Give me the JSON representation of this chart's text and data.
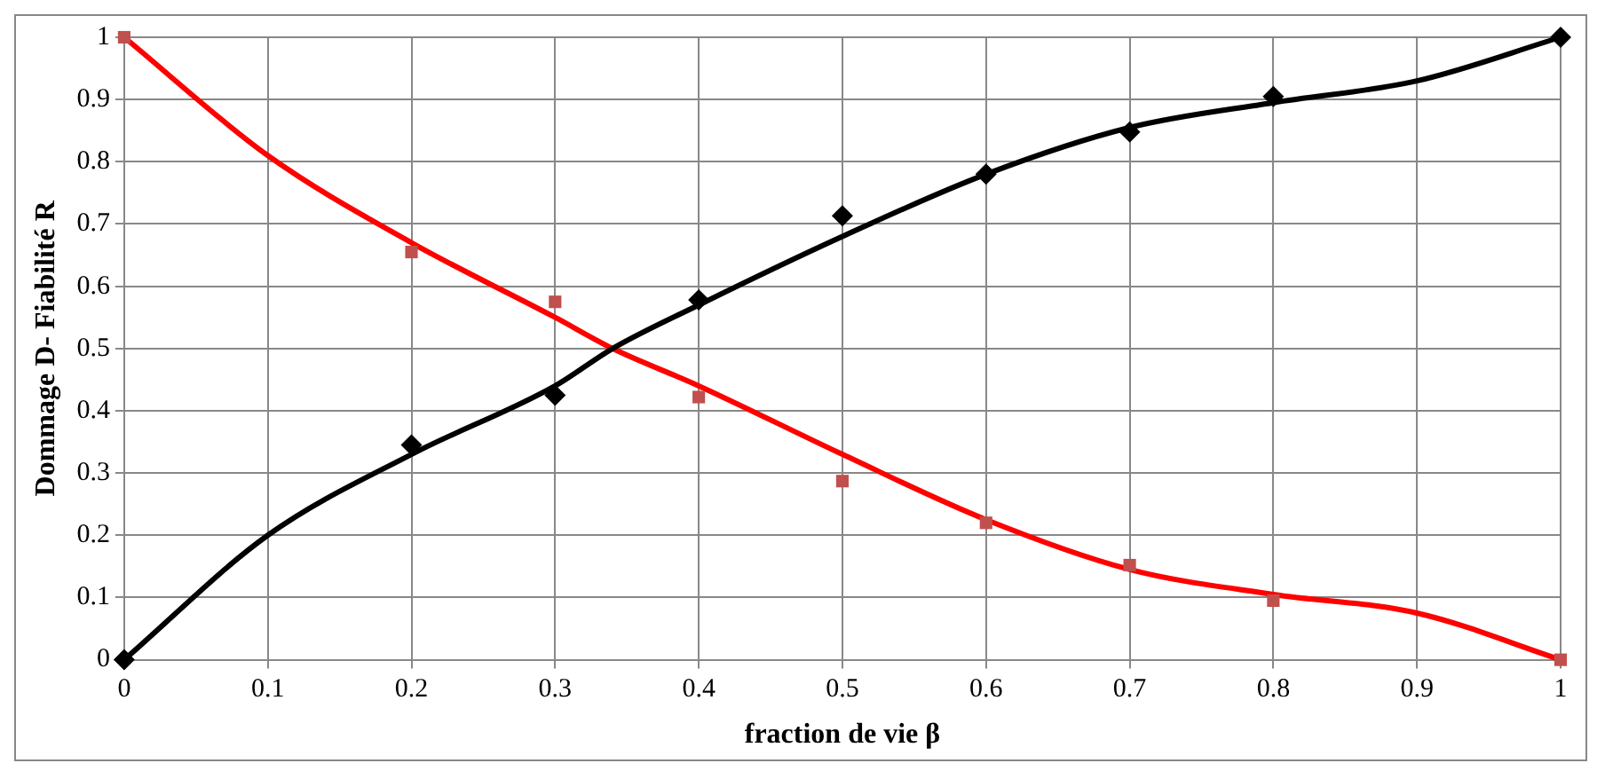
{
  "chart_data": {
    "type": "scatter",
    "xlabel": "fraction de vie β",
    "ylabel": "Dommage D- Fiabilité R",
    "xlim": [
      0,
      1
    ],
    "xticks": [
      0,
      0.1,
      0.2,
      0.3,
      0.4,
      0.5,
      0.6,
      0.7,
      0.8,
      0.9,
      1
    ],
    "ylim": [
      0,
      1
    ],
    "yticks": [
      0,
      0.1,
      0.2,
      0.3,
      0.4,
      0.5,
      0.6,
      0.7,
      0.8,
      0.9,
      1
    ],
    "grid": true,
    "legend": false,
    "series": [
      {
        "type": "line",
        "color": "#000000",
        "marker": "none",
        "x": [
          0,
          0.1,
          0.2,
          0.3,
          0.34,
          0.4,
          0.5,
          0.6,
          0.7,
          0.8,
          0.9,
          1
        ],
        "values": [
          0,
          0.2,
          0.33,
          0.44,
          0.5,
          0.57,
          0.68,
          0.78,
          0.855,
          0.895,
          0.93,
          1
        ]
      },
      {
        "type": "line",
        "color": "#ff0000",
        "marker": "none",
        "x": [
          0,
          0.1,
          0.2,
          0.3,
          0.34,
          0.4,
          0.5,
          0.6,
          0.7,
          0.8,
          0.9,
          1
        ],
        "values": [
          1,
          0.81,
          0.67,
          0.55,
          0.5,
          0.44,
          0.33,
          0.225,
          0.145,
          0.105,
          0.075,
          0
        ]
      },
      {
        "color": "#000000",
        "marker": "diamond",
        "x": [
          0,
          0.2,
          0.3,
          0.4,
          0.5,
          0.6,
          0.7,
          0.8,
          1
        ],
        "values": [
          0,
          0.345,
          0.425,
          0.578,
          0.713,
          0.78,
          0.848,
          0.905,
          1
        ]
      },
      {
        "color": "#c0504d",
        "marker": "square",
        "x": [
          0,
          0.2,
          0.3,
          0.4,
          0.5,
          0.6,
          0.7,
          0.8,
          1
        ],
        "values": [
          1,
          0.655,
          0.575,
          0.422,
          0.287,
          0.22,
          0.152,
          0.095,
          0
        ]
      }
    ]
  }
}
